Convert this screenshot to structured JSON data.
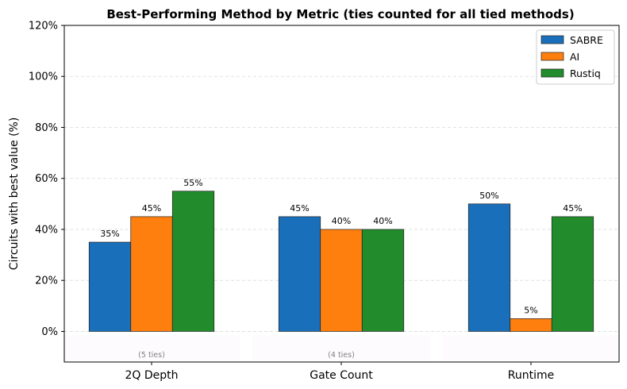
{
  "chart_data": {
    "type": "bar",
    "title": "Best-Performing Method by Metric (ties counted for all tied methods)",
    "xlabel": "",
    "ylabel": "Circuits with best value (%)",
    "categories": [
      "2Q Depth",
      "Gate Count",
      "Runtime"
    ],
    "series": [
      {
        "name": "SABRE",
        "values": [
          35,
          45,
          50
        ],
        "color": "#1a6fba"
      },
      {
        "name": "AI",
        "values": [
          45,
          40,
          5
        ],
        "color": "#ff7f0e"
      },
      {
        "name": "Rustiq",
        "values": [
          55,
          40,
          45
        ],
        "color": "#228b2b"
      }
    ],
    "data_labels": [
      [
        "35%",
        "45%",
        "50%"
      ],
      [
        "45%",
        "40%",
        "5%"
      ],
      [
        "55%",
        "40%",
        "45%"
      ]
    ],
    "tie_notes": [
      "(5 ties)",
      "(4 ties)",
      ""
    ],
    "ylim": [
      -12,
      120
    ],
    "yticks": [
      0,
      20,
      40,
      60,
      80,
      100,
      120
    ],
    "ytick_labels": [
      "0%",
      "20%",
      "40%",
      "60%",
      "80%",
      "100%",
      "120%"
    ],
    "grid": "y-dashed",
    "legend_position": "top-right"
  }
}
